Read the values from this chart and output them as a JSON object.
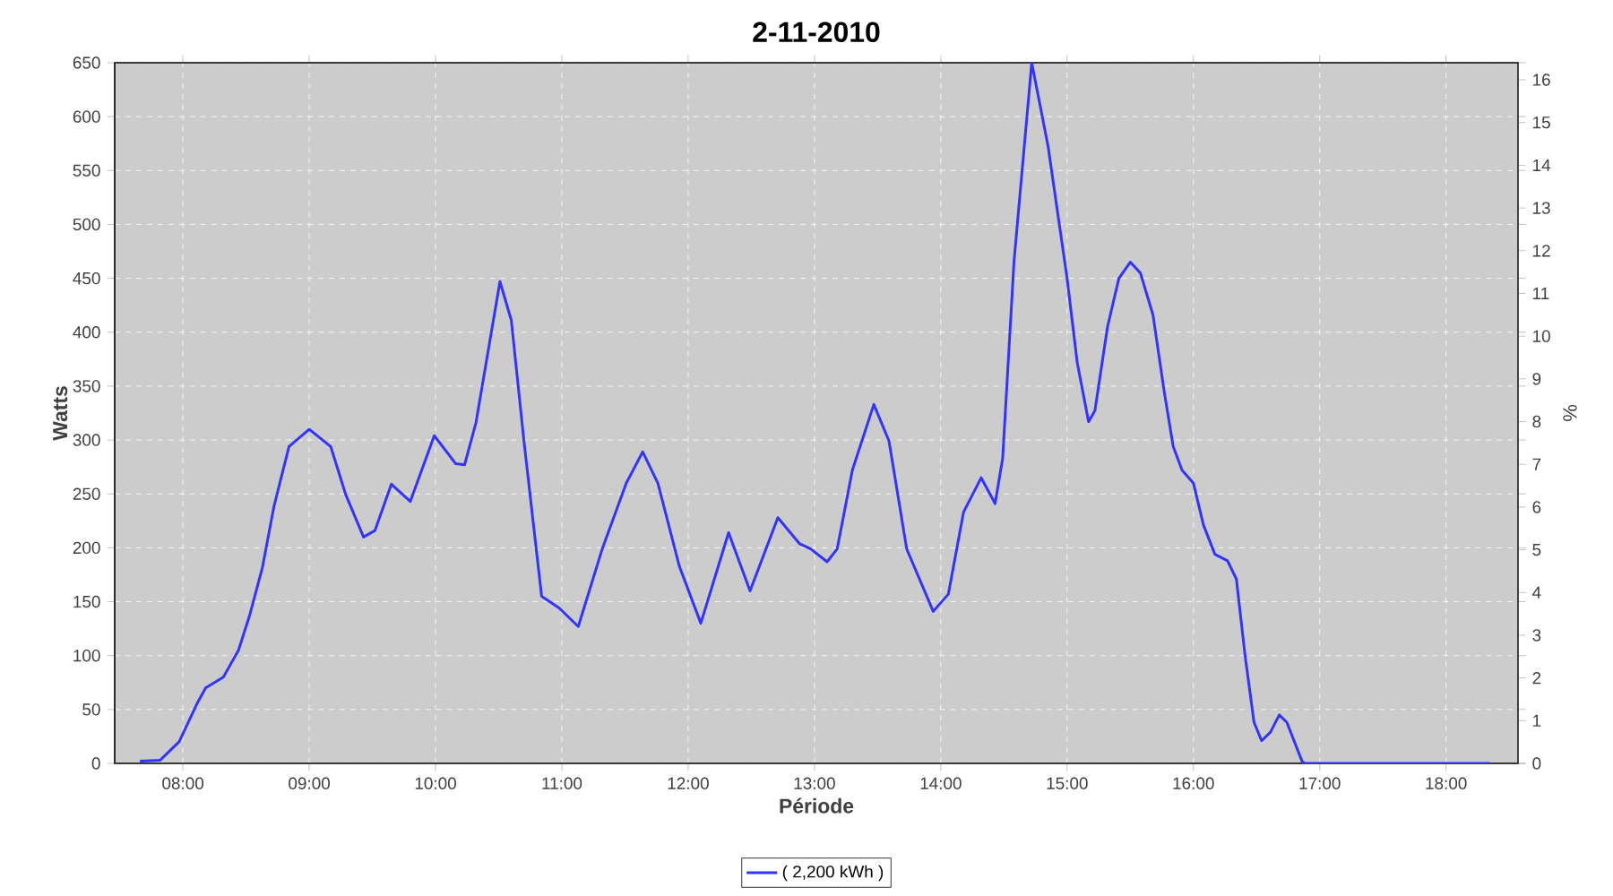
{
  "chart_data": {
    "type": "line",
    "title": "2-11-2010",
    "xlabel": "Période",
    "ylabel": "Watts",
    "y2label": "%",
    "xlim": [
      7.46,
      18.57
    ],
    "ylim": [
      0,
      650
    ],
    "y2lim": [
      0,
      16.4
    ],
    "xticks": [
      {
        "value": 8,
        "label": "08:00"
      },
      {
        "value": 9,
        "label": "09:00"
      },
      {
        "value": 10,
        "label": "10:00"
      },
      {
        "value": 11,
        "label": "11:00"
      },
      {
        "value": 12,
        "label": "12:00"
      },
      {
        "value": 13,
        "label": "13:00"
      },
      {
        "value": 14,
        "label": "14:00"
      },
      {
        "value": 15,
        "label": "15:00"
      },
      {
        "value": 16,
        "label": "16:00"
      },
      {
        "value": 17,
        "label": "17:00"
      },
      {
        "value": 18,
        "label": "18:00"
      }
    ],
    "yticks": [
      0,
      50,
      100,
      150,
      200,
      250,
      300,
      350,
      400,
      450,
      500,
      550,
      600,
      650
    ],
    "y2ticks": [
      0,
      1,
      2,
      3,
      4,
      5,
      6,
      7,
      8,
      9,
      10,
      11,
      12,
      13,
      14,
      15,
      16
    ],
    "grid": true,
    "legend": "bottom",
    "line_style": "solid",
    "series": [
      {
        "name": "( 2,200 kWh )",
        "color": "#3333ff",
        "x": [
          7.66,
          7.82,
          7.97,
          8.11,
          8.18,
          8.32,
          8.44,
          8.53,
          8.63,
          8.72,
          8.84,
          9.0,
          9.17,
          9.29,
          9.43,
          9.52,
          9.65,
          9.8,
          9.99,
          10.16,
          10.23,
          10.32,
          10.51,
          10.6,
          10.7,
          10.84,
          10.98,
          11.13,
          11.32,
          11.51,
          11.64,
          11.76,
          11.93,
          12.1,
          12.32,
          12.49,
          12.71,
          12.88,
          12.97,
          13.1,
          13.18,
          13.3,
          13.47,
          13.59,
          13.73,
          13.94,
          14.06,
          14.18,
          14.32,
          14.43,
          14.49,
          14.58,
          14.72,
          14.85,
          15.0,
          15.08,
          15.17,
          15.22,
          15.32,
          15.41,
          15.5,
          15.58,
          15.68,
          15.77,
          15.84,
          15.91,
          16.0,
          16.08,
          16.17,
          16.27,
          16.34,
          16.41,
          16.48,
          16.54,
          16.61,
          16.68,
          16.74,
          16.86,
          16.88,
          18.35
        ],
        "values": [
          2,
          3,
          20,
          55,
          70,
          80,
          105,
          138,
          182,
          238,
          294,
          310,
          294,
          249,
          210,
          216,
          259,
          243,
          304,
          278,
          277,
          316,
          447,
          411,
          299,
          155,
          144,
          127,
          199,
          260,
          289,
          260,
          183,
          130,
          214,
          160,
          228,
          204,
          199,
          187,
          199,
          272,
          333,
          299,
          199,
          141,
          157,
          233,
          265,
          241,
          283,
          466,
          650,
          572,
          450,
          372,
          317,
          327,
          405,
          450,
          465,
          455,
          416,
          344,
          294,
          272,
          260,
          221,
          194,
          188,
          171,
          99,
          38,
          21,
          29,
          45,
          38,
          2,
          0,
          0
        ]
      }
    ]
  }
}
